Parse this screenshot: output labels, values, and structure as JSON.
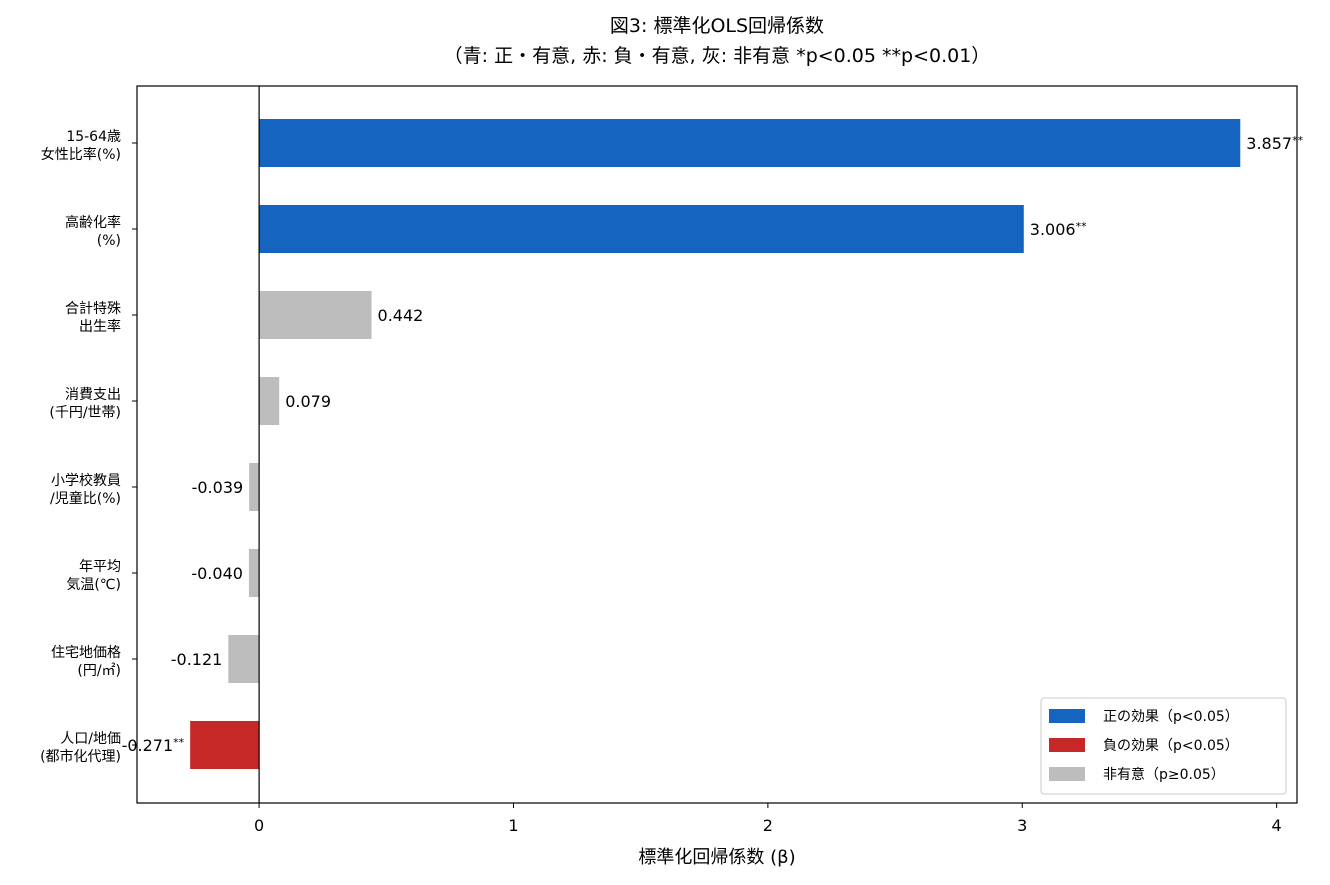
{
  "chart_data": {
    "type": "bar",
    "orientation": "horizontal",
    "title": "図3: 標準化OLS回帰係数",
    "subtitle": "（青: 正・有意, 赤: 負・有意, 灰: 非有意  *p<0.05  **p<0.01）",
    "xlabel": "標準化回帰係数 (β)",
    "ylabel": "",
    "xlim": [
      -0.48,
      4.08
    ],
    "xticks": [
      0,
      1,
      2,
      3,
      4
    ],
    "grid": false,
    "legend_position": "bottom-right",
    "colors": {
      "positive": "#1565c0",
      "negative": "#c62828",
      "nonsig": "#bdbdbd"
    },
    "legend": [
      {
        "label": "正の効果（p<0.05）",
        "group": "positive"
      },
      {
        "label": "負の効果（p<0.05）",
        "group": "negative"
      },
      {
        "label": "非有意（p≥0.05）",
        "group": "nonsig"
      }
    ],
    "bars": [
      {
        "label": [
          "15-64歳",
          "女性比率(%)"
        ],
        "value": 3.857,
        "value_label": "3.857",
        "sig": "**",
        "group": "positive"
      },
      {
        "label": [
          "高齢化率",
          "(%)"
        ],
        "value": 3.006,
        "value_label": "3.006",
        "sig": "**",
        "group": "positive"
      },
      {
        "label": [
          "合計特殊",
          "出生率"
        ],
        "value": 0.442,
        "value_label": "0.442",
        "sig": "",
        "group": "nonsig"
      },
      {
        "label": [
          "消費支出",
          "(千円/世帯)"
        ],
        "value": 0.079,
        "value_label": "0.079",
        "sig": "",
        "group": "nonsig"
      },
      {
        "label": [
          "小学校教員",
          "/児童比(%)"
        ],
        "value": -0.039,
        "value_label": "-0.039",
        "sig": "",
        "group": "nonsig"
      },
      {
        "label": [
          "年平均",
          "気温(℃)"
        ],
        "value": -0.04,
        "value_label": "-0.040",
        "sig": "",
        "group": "nonsig"
      },
      {
        "label": [
          "住宅地価格",
          "(円/㎡)"
        ],
        "value": -0.121,
        "value_label": "-0.121",
        "sig": "",
        "group": "nonsig"
      },
      {
        "label": [
          "人口/地価",
          "(都市化代理)"
        ],
        "value": -0.271,
        "value_label": "-0.271",
        "sig": "**",
        "group": "negative"
      }
    ]
  }
}
